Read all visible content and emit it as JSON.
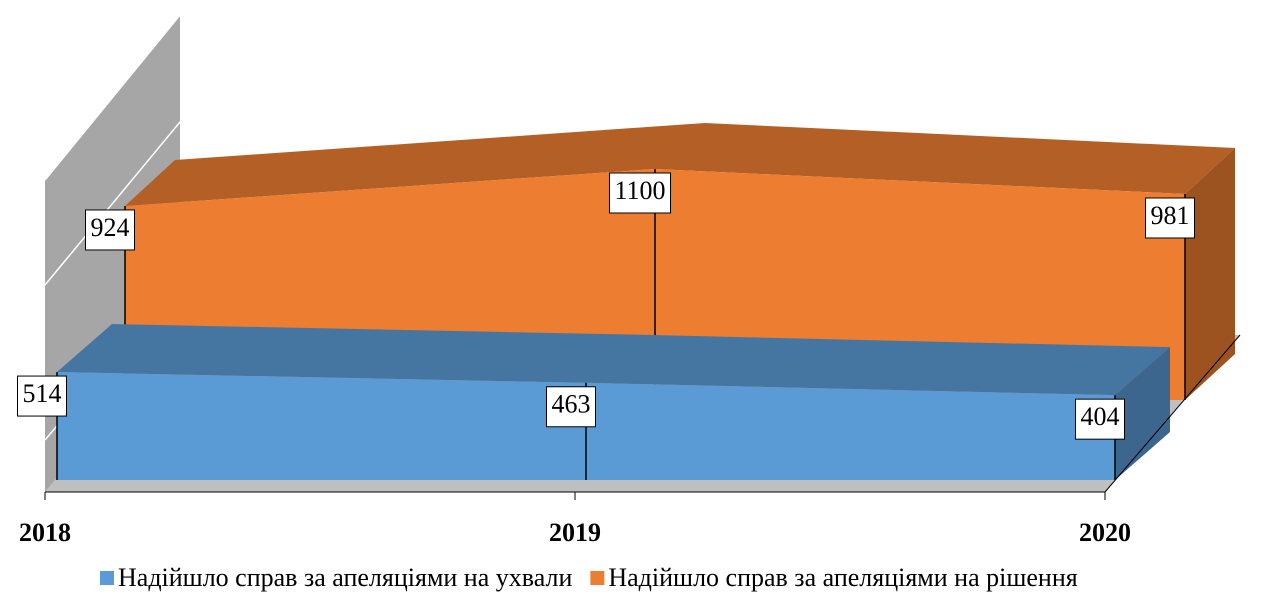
{
  "chart_data": {
    "type": "area3d",
    "categories": [
      "2018",
      "2019",
      "2020"
    ],
    "series": [
      {
        "name": "Надійшло справ за апеляціями на ухвали",
        "color": "#5b9bd5",
        "values": [
          514,
          463,
          404
        ]
      },
      {
        "name": "Надійшло справ за апеляціями на рішення",
        "color": "#ed7d31",
        "values": [
          924,
          1100,
          981
        ]
      }
    ],
    "ylim": [
      0,
      1200
    ]
  }
}
